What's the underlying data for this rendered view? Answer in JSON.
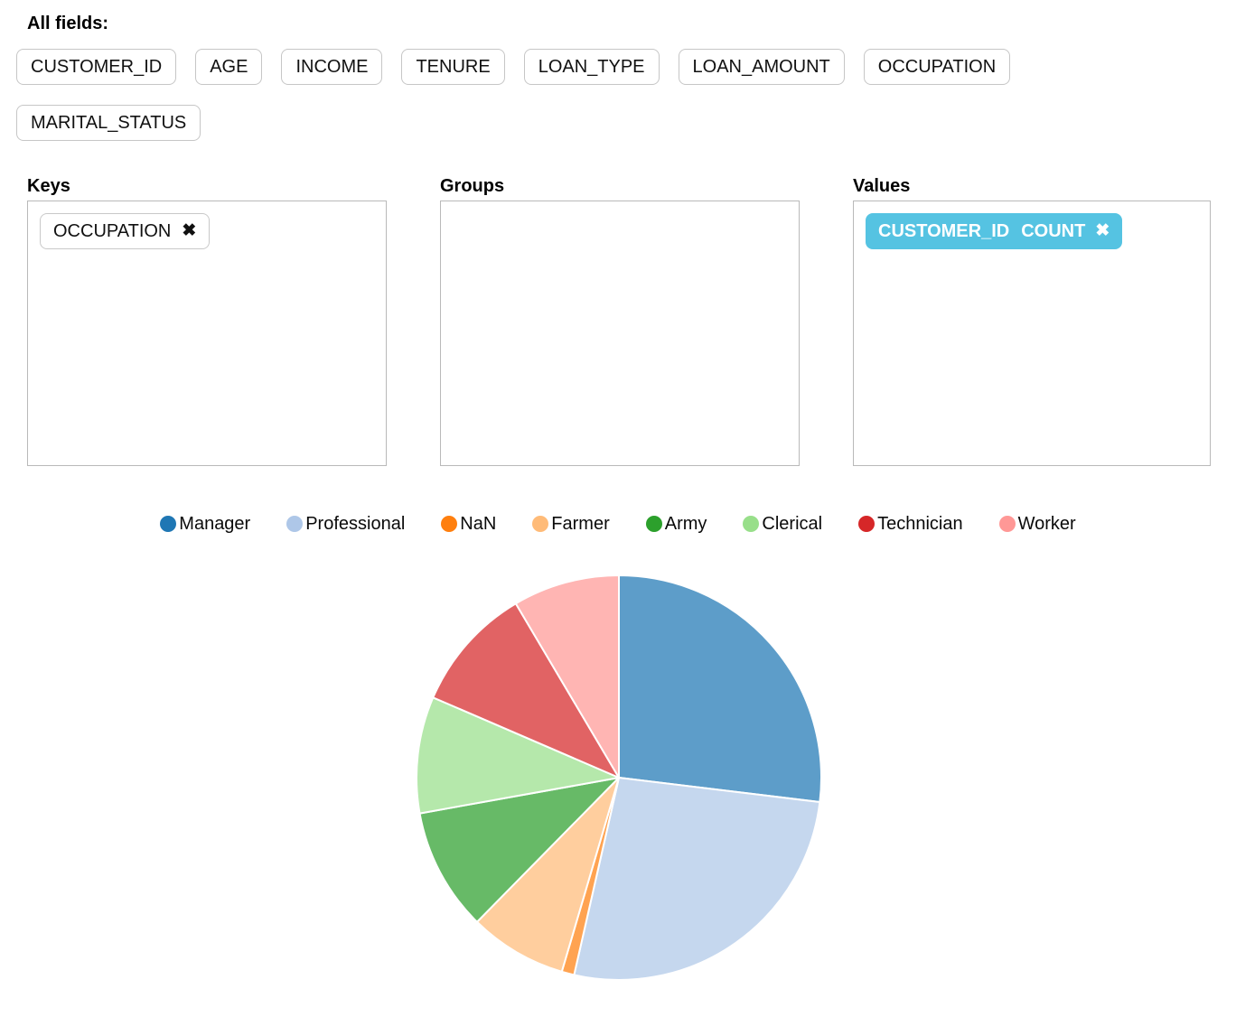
{
  "all_fields": {
    "label": "All fields:",
    "fields": [
      "CUSTOMER_ID",
      "AGE",
      "INCOME",
      "TENURE",
      "LOAN_TYPE",
      "LOAN_AMOUNT",
      "OCCUPATION",
      "MARITAL_STATUS"
    ]
  },
  "drop_zones": {
    "keys": {
      "label": "Keys",
      "items": [
        {
          "field": "OCCUPATION",
          "remove_icon": "✖"
        }
      ]
    },
    "groups": {
      "label": "Groups",
      "items": []
    },
    "values": {
      "label": "Values",
      "items": [
        {
          "field": "CUSTOMER_ID",
          "aggregator": "COUNT",
          "remove_icon": "✖",
          "pill_color": "#55C3E2",
          "text_color": "#ffffff"
        }
      ]
    }
  },
  "chart_data": {
    "type": "pie",
    "title": "",
    "categories": [
      "Manager",
      "Professional",
      "NaN",
      "Farmer",
      "Army",
      "Clerical",
      "Technician",
      "Worker"
    ],
    "values": [
      26.9,
      26.6,
      1.0,
      7.8,
      9.8,
      9.3,
      10.0,
      8.5
    ],
    "unit": "percent_share_of_CUSTOMER_ID_COUNT",
    "colors": [
      "#1f77b4",
      "#aec7e8",
      "#ff7f0e",
      "#ffbb78",
      "#2ca02c",
      "#98df8a",
      "#d62728",
      "#ff9896"
    ],
    "slice_fill_opacity": 0.72,
    "slice_stroke": "#ffffff",
    "start_angle_deg": 0,
    "direction": "clockwise",
    "legend_position": "top",
    "legend_marker": "circle"
  }
}
